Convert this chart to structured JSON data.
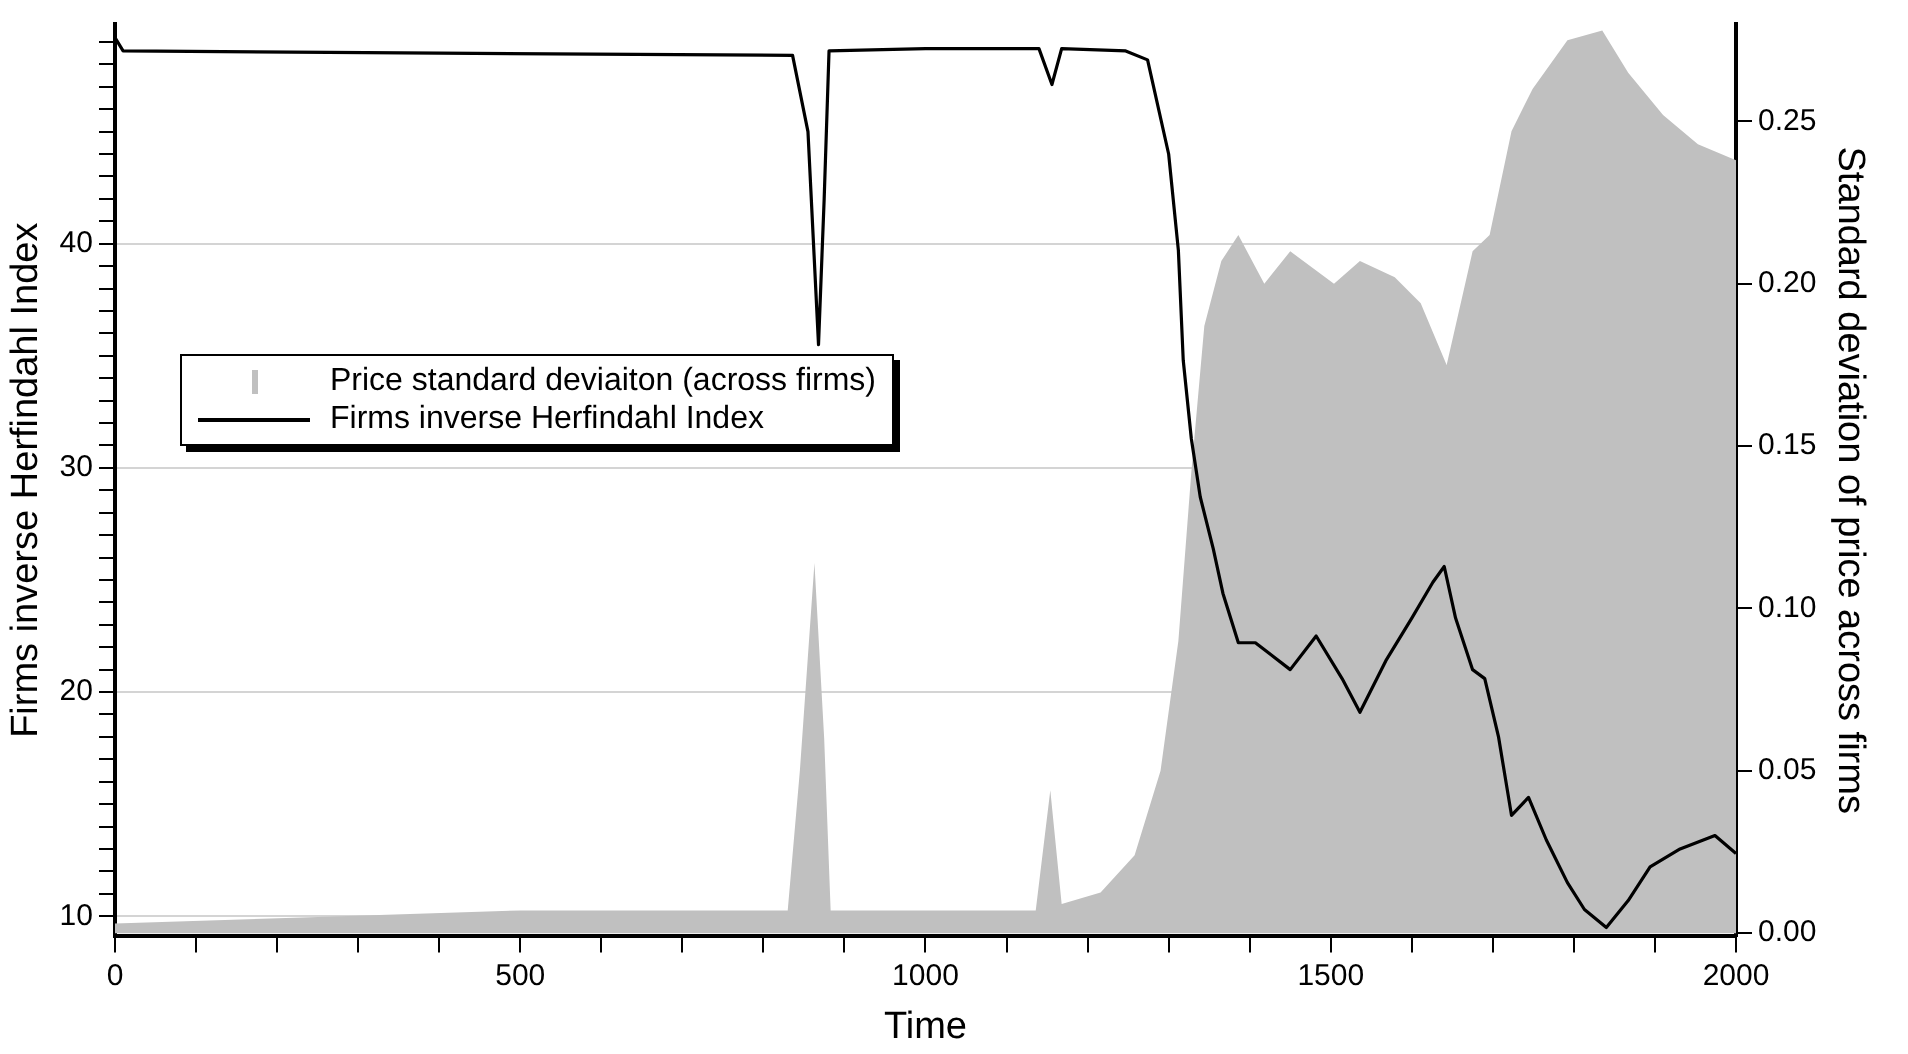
{
  "chart_data": {
    "type": "area",
    "xlabel": "Time",
    "ylabel": "Firms inverse Herfindahl Index",
    "y2label": "Standard deviation of price across firms",
    "xlim": [
      0,
      2000
    ],
    "ylim": [
      9.1,
      49.8
    ],
    "y2lim": [
      -0.001,
      0.28
    ],
    "xticks": [
      0,
      {
        "value": 100,
        "label": null
      },
      {
        "value": 200,
        "label": null
      },
      {
        "value": 300,
        "label": null
      },
      {
        "value": 400,
        "label": null
      },
      500,
      {
        "value": 600,
        "label": null
      },
      {
        "value": 700,
        "label": null
      },
      {
        "value": 800,
        "label": null
      },
      {
        "value": 900,
        "label": null
      },
      1000,
      {
        "value": 1100,
        "label": null
      },
      {
        "value": 1200,
        "label": null
      },
      {
        "value": 1300,
        "label": null
      },
      {
        "value": 1400,
        "label": null
      },
      1500,
      {
        "value": 1600,
        "label": null
      },
      {
        "value": 1700,
        "label": null
      },
      {
        "value": 1800,
        "label": null
      },
      {
        "value": 1900,
        "label": null
      },
      2000
    ],
    "yticks": [
      10,
      {
        "value": 11,
        "label": null
      },
      {
        "value": 12,
        "label": null
      },
      {
        "value": 13,
        "label": null
      },
      {
        "value": 14,
        "label": null
      },
      {
        "value": 15,
        "label": null
      },
      {
        "value": 16,
        "label": null
      },
      {
        "value": 17,
        "label": null
      },
      {
        "value": 18,
        "label": null
      },
      {
        "value": 19,
        "label": null
      },
      20,
      {
        "value": 21,
        "label": null
      },
      {
        "value": 22,
        "label": null
      },
      {
        "value": 23,
        "label": null
      },
      {
        "value": 24,
        "label": null
      },
      {
        "value": 25,
        "label": null
      },
      {
        "value": 26,
        "label": null
      },
      {
        "value": 27,
        "label": null
      },
      {
        "value": 28,
        "label": null
      },
      {
        "value": 29,
        "label": null
      },
      30,
      {
        "value": 31,
        "label": null
      },
      {
        "value": 32,
        "label": null
      },
      {
        "value": 33,
        "label": null
      },
      {
        "value": 34,
        "label": null
      },
      {
        "value": 35,
        "label": null
      },
      {
        "value": 36,
        "label": null
      },
      {
        "value": 37,
        "label": null
      },
      {
        "value": 38,
        "label": null
      },
      {
        "value": 39,
        "label": null
      },
      40,
      {
        "value": 41,
        "label": null
      },
      {
        "value": 42,
        "label": null
      },
      {
        "value": 43,
        "label": null
      },
      {
        "value": 44,
        "label": null
      },
      {
        "value": 45,
        "label": null
      },
      {
        "value": 46,
        "label": null
      },
      {
        "value": 47,
        "label": null
      },
      {
        "value": 48,
        "label": null
      },
      {
        "value": 49,
        "label": null
      }
    ],
    "y2ticks": [
      {
        "value": 0,
        "label": "0.00"
      },
      {
        "value": 0.05,
        "label": "0.05"
      },
      {
        "value": 0.1,
        "label": "0.10"
      },
      {
        "value": 0.15,
        "label": "0.15"
      },
      {
        "value": 0.2,
        "label": "0.20"
      },
      {
        "value": 0.25,
        "label": "0.25"
      }
    ],
    "grid": "y",
    "legend": "left",
    "series": [
      {
        "name": "Price standard deviaiton (across firms)",
        "axis": "y2",
        "color": "#c0c0c0",
        "x": [
          0,
          250,
          500,
          830,
          845,
          863,
          875,
          883,
          1000,
          1136,
          1154,
          1168,
          1216,
          1258,
          1290,
          1312,
          1328,
          1344,
          1365,
          1386,
          1418,
          1450,
          1504,
          1536,
          1579,
          1611,
          1643,
          1675,
          1696,
          1723,
          1749,
          1792,
          1835,
          1867,
          1910,
          1953,
          2000
        ],
        "values": [
          0.003,
          0.005,
          0.007,
          0.007,
          0.05,
          0.114,
          0.06,
          0.007,
          0.007,
          0.007,
          0.044,
          0.009,
          0.0125,
          0.024,
          0.05,
          0.09,
          0.142,
          0.187,
          0.207,
          0.215,
          0.2,
          0.21,
          0.2,
          0.207,
          0.202,
          0.194,
          0.175,
          0.21,
          0.215,
          0.247,
          0.26,
          0.275,
          0.278,
          0.265,
          0.252,
          0.243,
          0.238
        ]
      },
      {
        "name": "Firms inverse Herfindahl Index",
        "type": "line",
        "axis": "y",
        "color": "#000000",
        "x": [
          0,
          10,
          400,
          836,
          855,
          868,
          875,
          881,
          1000,
          1140,
          1156,
          1168,
          1247,
          1274,
          1300,
          1312,
          1318,
          1328,
          1339,
          1355,
          1367,
          1386,
          1407,
          1450,
          1482,
          1514,
          1536,
          1568,
          1600,
          1626,
          1640,
          1654,
          1675,
          1690,
          1707,
          1723,
          1744,
          1766,
          1792,
          1813,
          1840,
          1867,
          1894,
          1931,
          1974,
          2000
        ],
        "values": [
          49.2,
          48.6,
          48.5,
          48.4,
          45,
          35.5,
          42,
          48.6,
          48.7,
          48.7,
          47.1,
          48.7,
          48.6,
          48.2,
          44,
          39.7,
          34.8,
          31.3,
          28.7,
          26.4,
          24.4,
          22.2,
          22.2,
          21,
          22.5,
          20.6,
          19.1,
          21.4,
          23.3,
          24.9,
          25.6,
          23.3,
          21,
          20.6,
          18,
          14.5,
          15.3,
          13.4,
          11.5,
          10.3,
          9.5,
          10.7,
          12.2,
          13,
          13.6,
          12.8
        ]
      }
    ]
  }
}
